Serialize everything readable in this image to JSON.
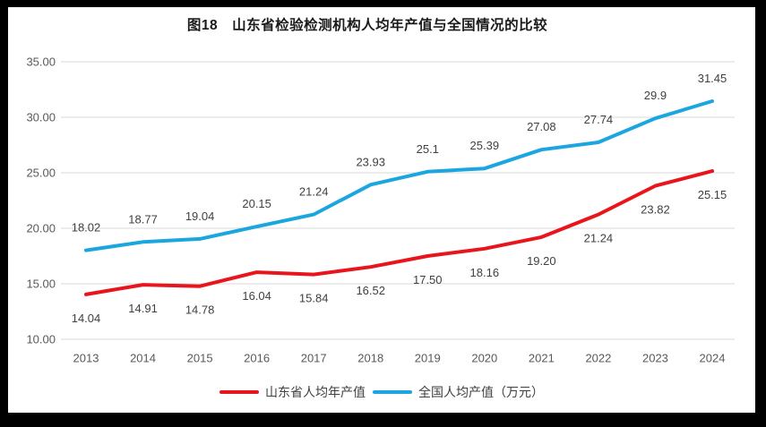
{
  "title": "图18　山东省检验检测机构人均年产值与全国情况的比较",
  "legend": [
    {
      "label": "山东省人均年产值",
      "color": "#e8151d"
    },
    {
      "label": "全国人均产值（万元）",
      "color": "#1ca6e0"
    }
  ],
  "chart_data": {
    "type": "line",
    "title": "图18　山东省检验检测机构人均年产值与全国情况的比较",
    "categories": [
      "2013",
      "2014",
      "2015",
      "2016",
      "2017",
      "2018",
      "2019",
      "2020",
      "2021",
      "2022",
      "2023",
      "2024"
    ],
    "series": [
      {
        "name": "山东省人均年产值",
        "color": "#e8151d",
        "values": [
          14.04,
          14.91,
          14.78,
          16.04,
          15.84,
          16.52,
          17.5,
          18.16,
          19.2,
          21.24,
          23.82,
          25.15
        ],
        "labels": [
          "14.04",
          "14.91",
          "14.78",
          "16.04",
          "15.84",
          "16.52",
          "17.50",
          "18.16",
          "19.20",
          "21.24",
          "23.82",
          "25.15"
        ],
        "label_position": "below"
      },
      {
        "name": "全国人均产值（万元）",
        "color": "#1ca6e0",
        "values": [
          18.02,
          18.77,
          19.04,
          20.15,
          21.24,
          23.93,
          25.1,
          25.39,
          27.08,
          27.74,
          29.9,
          31.45
        ],
        "labels": [
          "18.02",
          "18.77",
          "19.04",
          "20.15",
          "21.24",
          "23.93",
          "25.1",
          "25.39",
          "27.08",
          "27.74",
          "29.9",
          "31.45"
        ],
        "label_position": "above"
      }
    ],
    "y_ticks": [
      "35.00",
      "30.00",
      "25.00",
      "20.00",
      "15.00",
      "10.00"
    ],
    "ylim": [
      10,
      35
    ],
    "grid": true,
    "legend_position": "bottom",
    "gridline_color": "#d9d9d9",
    "axis_tick_color": "#595959",
    "data_label_color": "#404040"
  }
}
